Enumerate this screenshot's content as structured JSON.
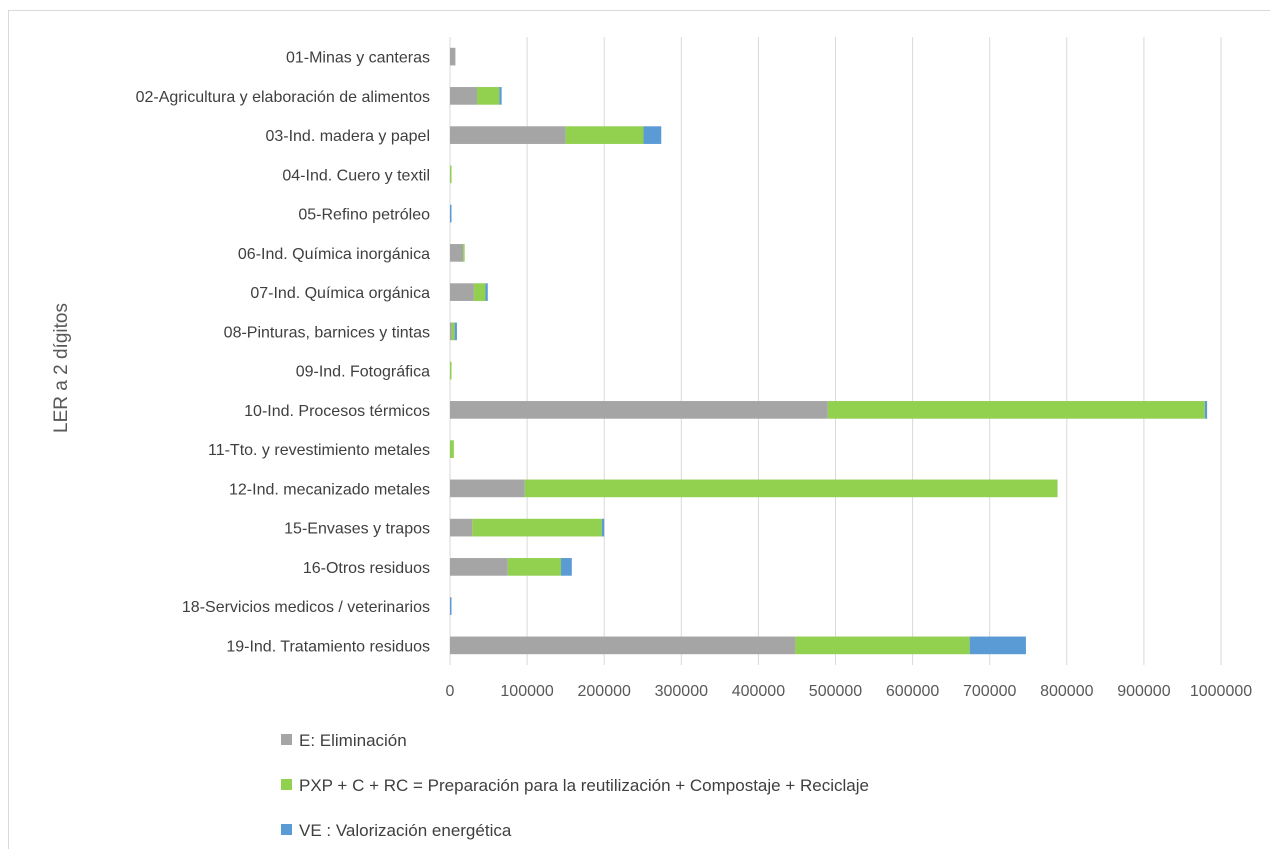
{
  "chart_data": {
    "type": "bar",
    "orientation": "horizontal",
    "stacked": true,
    "title": "",
    "xlabel": "",
    "ylabel": "LER a 2 dígitos",
    "xlim": [
      0,
      1000000
    ],
    "xticks": [
      0,
      100000,
      200000,
      300000,
      400000,
      500000,
      600000,
      700000,
      800000,
      900000,
      1000000
    ],
    "grid": "vertical",
    "legend_position": "bottom",
    "categories": [
      "01-Minas y canteras",
      "02-Agricultura y elaboración de alimentos",
      "03-Ind. madera y papel",
      "04-Ind. Cuero y textil",
      "05-Refino petróleo",
      "06-Ind. Química inorgánica",
      "07-Ind. Química orgánica",
      "08-Pinturas, barnices y tintas",
      "09-Ind. Fotográfica",
      "10-Ind. Procesos térmicos",
      "11-Tto. y revestimiento metales",
      "12-Ind. mecanizado metales",
      "15-Envases y trapos",
      "16-Otros residuos",
      "18-Servicios medicos / veterinarios",
      "19-Ind. Tratamiento residuos"
    ],
    "series": [
      {
        "name": "E: Eliminación",
        "color": "#a5a5a5",
        "values": [
          7000,
          35000,
          150000,
          0,
          0,
          17000,
          31000,
          2000,
          0,
          490000,
          0,
          97000,
          29000,
          75000,
          0,
          448000
        ]
      },
      {
        "name": "PXP + C + RC = Preparación para la reutilización + Compostaje +  Reciclaje",
        "color": "#92d050",
        "values": [
          0,
          29000,
          101000,
          2000,
          0,
          2000,
          15000,
          4000,
          2000,
          489000,
          5000,
          691000,
          168000,
          69000,
          0,
          226000
        ]
      },
      {
        "name": "VE : Valorización energética",
        "color": "#5b9bd5",
        "values": [
          0,
          3000,
          23000,
          0,
          1500,
          0,
          3000,
          3000,
          0,
          3000,
          0,
          0,
          3000,
          14000,
          1000,
          73000
        ]
      }
    ]
  }
}
